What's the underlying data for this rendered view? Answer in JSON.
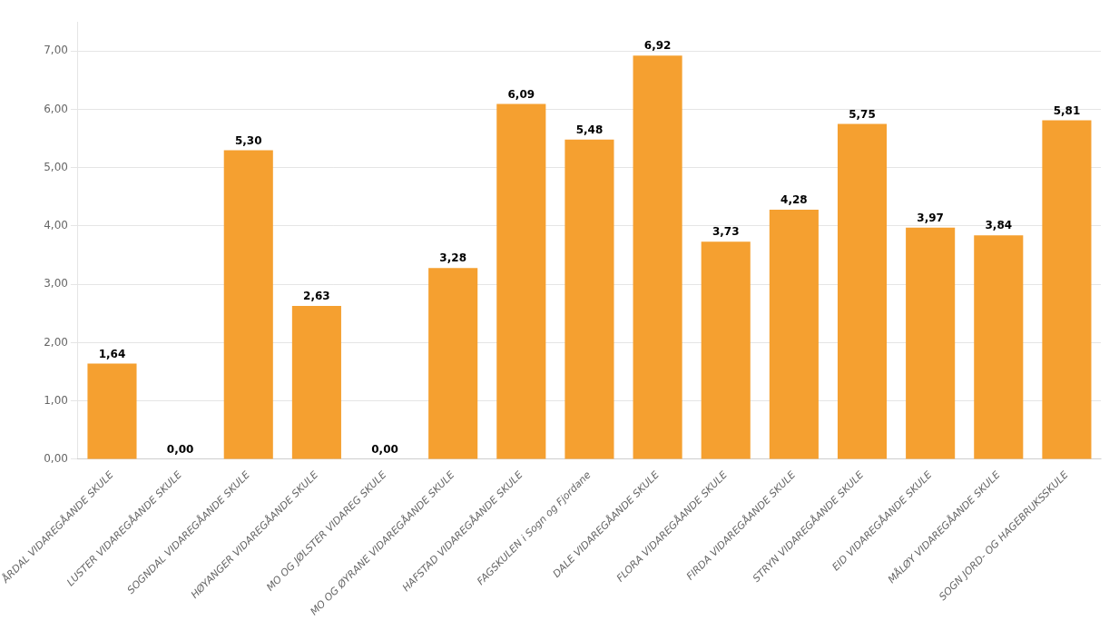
{
  "chart_data": {
    "type": "bar",
    "categories": [
      "ÅRDAL VIDAREGÅANDE SKULE",
      "LUSTER VIDAREGÅANDE SKULE",
      "SOGNDAL VIDAREGÅANDE SKULE",
      "HØYANGER VIDAREGÅANDE SKULE",
      "MO OG JØLSTER VIDAREG SKULE",
      "MO OG ØYRANE VIDAREGÅANDE SKULE",
      "HAFSTAD VIDAREGÅANDE SKULE",
      "FAGSKULEN i Sogn og Fjordane",
      "DALE VIDAREGÅANDE SKULE",
      "FLORA VIDAREGÅANDE SKULE",
      "FIRDA VIDAREGÅANDE SKULE",
      "STRYN VIDAREGÅANDE SKULE",
      "EID VIDAREGÅANDE SKULE",
      "MÅLØY VIDAREGÅANDE SKULE",
      "SOGN JORD- OG HAGEBRUKSSKULE"
    ],
    "values": [
      1.64,
      0.0,
      5.3,
      2.63,
      0.0,
      3.28,
      6.09,
      5.48,
      6.92,
      3.73,
      4.28,
      5.75,
      3.97,
      3.84,
      5.81
    ],
    "value_labels": [
      "1,64",
      "0,00",
      "5,30",
      "2,63",
      "0,00",
      "3,28",
      "6,09",
      "5,48",
      "6,92",
      "3,73",
      "4,28",
      "5,75",
      "3,97",
      "3,84",
      "5,81"
    ],
    "data_labels": true,
    "color": "#F5A030",
    "ylim": [
      0,
      7.5
    ],
    "yticks": [
      {
        "value": 0.0,
        "label": "0,00"
      },
      {
        "value": 1.0,
        "label": "1,00"
      },
      {
        "value": 2.0,
        "label": "2,00"
      },
      {
        "value": 3.0,
        "label": "3,00"
      },
      {
        "value": 4.0,
        "label": "4,00"
      },
      {
        "value": 5.0,
        "label": "5,00"
      },
      {
        "value": 6.0,
        "label": "6,00"
      },
      {
        "value": 7.0,
        "label": "7,00"
      }
    ],
    "grid": true
  }
}
